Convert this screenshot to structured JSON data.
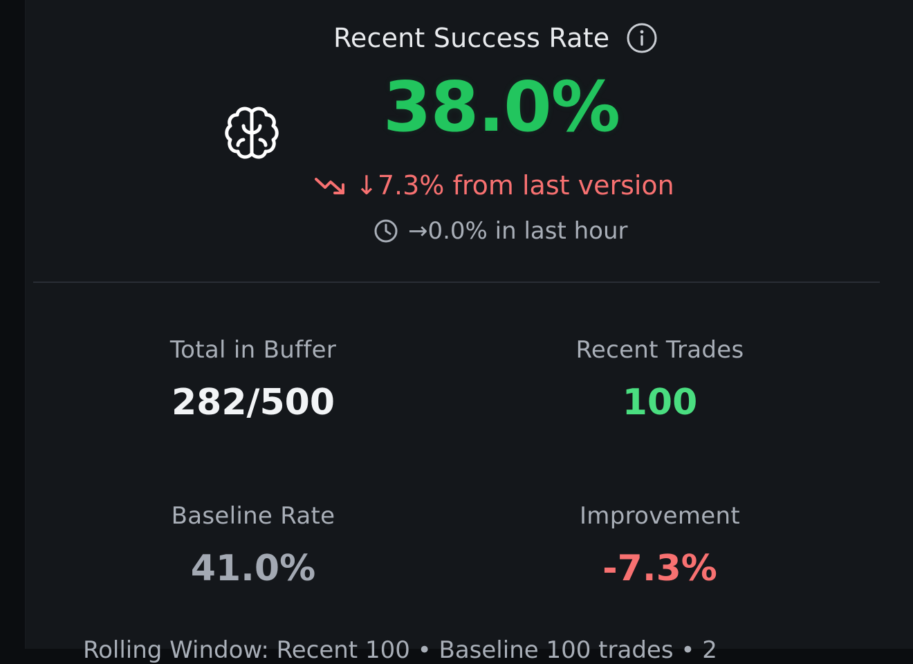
{
  "header": {
    "title": "Recent Success Rate",
    "rate": "38.0%",
    "delta_text": "↓7.3% from last version",
    "hour_text": "→0.0% in last hour"
  },
  "icons": {
    "info": "info-circle-icon",
    "brain": "brain-icon",
    "trend": "trending-down-icon",
    "clock": "clock-icon"
  },
  "colors": {
    "success": "#22c55e",
    "danger": "#f87171",
    "muted": "#a9afb8",
    "background": "#14171b"
  },
  "stats": {
    "total_buffer": {
      "label": "Total in Buffer",
      "value": "282/500"
    },
    "recent_trades": {
      "label": "Recent Trades",
      "value": "100"
    },
    "baseline_rate": {
      "label": "Baseline Rate",
      "value": "41.0%"
    },
    "improvement": {
      "label": "Improvement",
      "value": "-7.3%"
    }
  },
  "footer": {
    "text": "Rolling Window: Recent 100 • Baseline 100 trades • 2"
  }
}
